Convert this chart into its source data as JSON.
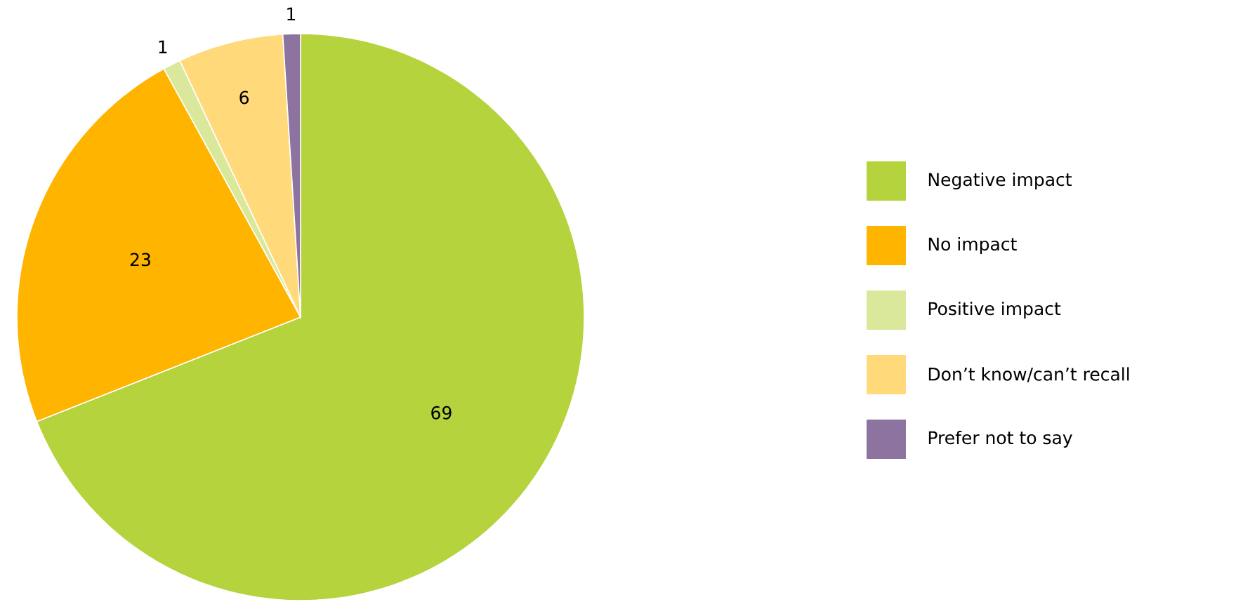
{
  "chart_data": {
    "type": "pie",
    "categories": [
      "Negative impact",
      "No impact",
      "Positive impact",
      "Don’t know/can’t recall",
      "Prefer not to say"
    ],
    "values": [
      69,
      23,
      1,
      6,
      1
    ],
    "colors": [
      "#b5d33d",
      "#ffb400",
      "#d9e89a",
      "#ffd97a",
      "#8c73a0"
    ],
    "data_labels": true,
    "legend": "right"
  }
}
